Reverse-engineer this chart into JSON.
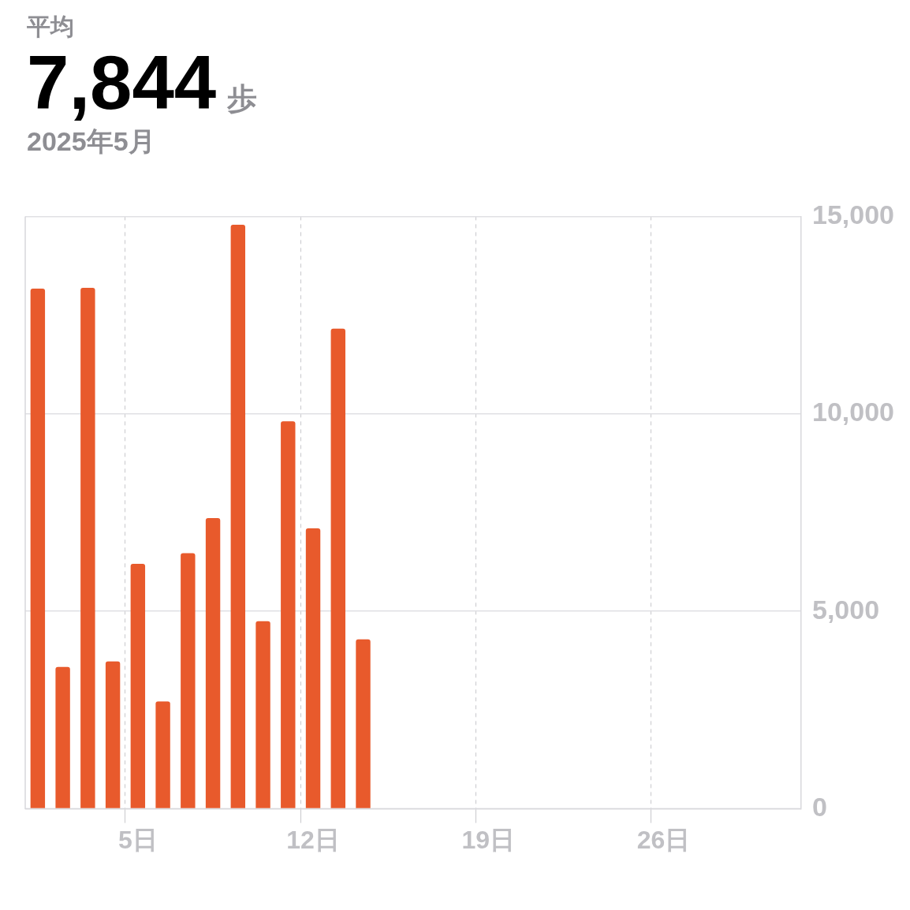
{
  "chart_data": {
    "type": "bar",
    "title": "7,844",
    "subtitle": "2025年5月",
    "annotations": [
      "平均",
      "歩"
    ],
    "categories": [
      null,
      null,
      null,
      null,
      "5日",
      null,
      null,
      null,
      null,
      null,
      null,
      "12日",
      null,
      null,
      null,
      null,
      null,
      null,
      "19日",
      null,
      null,
      null,
      null,
      null,
      null,
      "26日",
      null,
      null,
      null,
      null,
      null
    ],
    "values": [
      13170,
      3590,
      13190,
      3730,
      6200,
      2720,
      6470,
      7360,
      14790,
      4750,
      9810,
      7100,
      12160,
      4290,
      null,
      null,
      null,
      null,
      null,
      null,
      null,
      null,
      null,
      null,
      null,
      null,
      null,
      null,
      null,
      null,
      null
    ],
    "color": "#e85a2c",
    "ylim": [
      0,
      15000
    ],
    "yticks": [
      0,
      {
        "value": 5000,
        "label": "5,000"
      },
      {
        "value": 10000,
        "label": "10,000"
      },
      {
        "value": 15000,
        "label": "15,000"
      }
    ],
    "grid": true
  }
}
